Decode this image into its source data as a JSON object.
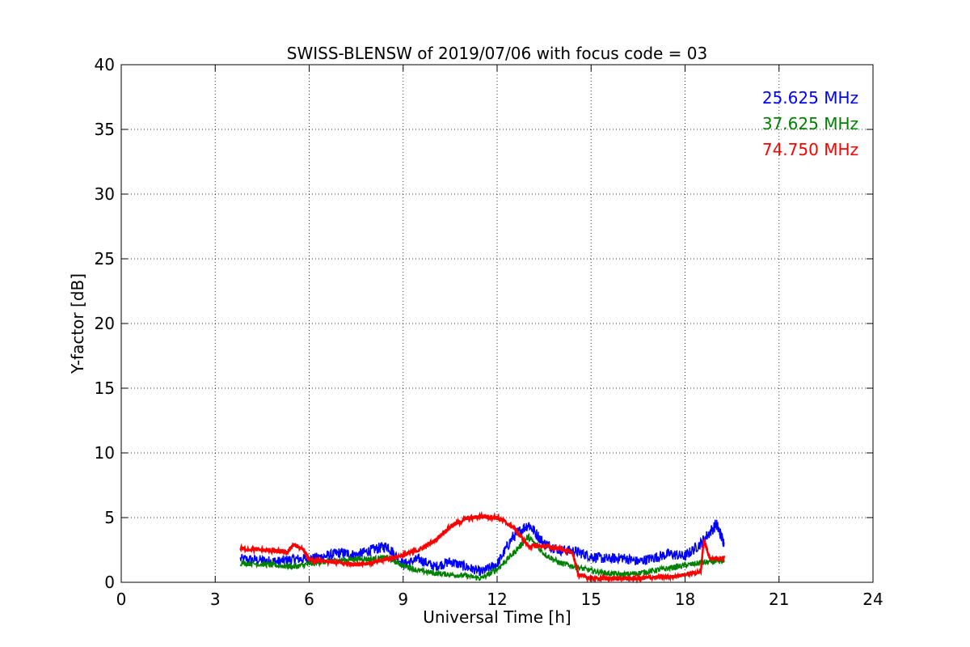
{
  "chart_data": {
    "type": "line",
    "title": "SWISS-BLENSW of 2019/07/06 with focus code = 03",
    "xlabel": "Universal Time [h]",
    "ylabel": "Y-factor [dB]",
    "xlim": [
      0,
      24
    ],
    "ylim": [
      0,
      40
    ],
    "xticks": [
      0,
      3,
      6,
      9,
      12,
      15,
      18,
      21,
      24
    ],
    "yticks": [
      0,
      5,
      10,
      15,
      20,
      25,
      30,
      35,
      40
    ],
    "xtick_labels": [
      "0",
      "3",
      "6",
      "9",
      "12",
      "15",
      "18",
      "21",
      "24"
    ],
    "ytick_labels": [
      "0",
      "5",
      "10",
      "15",
      "20",
      "25",
      "30",
      "35",
      "40"
    ],
    "grid": true,
    "legend_position": "top-right",
    "series": [
      {
        "name": "25.625 MHz",
        "color": "#0000ff",
        "x": [
          3.8,
          4.5,
          5.0,
          5.5,
          6.0,
          6.5,
          7.0,
          7.5,
          8.0,
          8.5,
          9.0,
          9.5,
          10.0,
          10.5,
          11.0,
          11.5,
          12.0,
          12.5,
          13.0,
          13.5,
          14.0,
          14.5,
          15.0,
          15.5,
          16.0,
          16.5,
          17.0,
          17.5,
          18.0,
          18.5,
          19.0,
          19.25
        ],
        "y": [
          1.8,
          1.7,
          1.6,
          1.8,
          1.8,
          2.0,
          2.3,
          2.1,
          2.5,
          2.8,
          1.4,
          1.8,
          1.2,
          1.6,
          1.2,
          0.8,
          1.4,
          3.5,
          4.5,
          3.0,
          2.5,
          2.4,
          2.0,
          1.8,
          1.9,
          1.6,
          1.9,
          2.2,
          2.0,
          3.0,
          4.5,
          3.0
        ]
      },
      {
        "name": "37.625 MHz",
        "color": "#008000",
        "x": [
          3.8,
          4.5,
          5.0,
          5.5,
          6.0,
          6.5,
          7.0,
          7.5,
          8.0,
          8.5,
          9.0,
          9.5,
          10.0,
          10.5,
          11.0,
          11.5,
          12.0,
          12.5,
          13.0,
          13.5,
          14.0,
          14.5,
          15.0,
          15.5,
          16.0,
          16.5,
          17.0,
          17.5,
          18.0,
          18.5,
          19.0,
          19.25
        ],
        "y": [
          1.5,
          1.4,
          1.3,
          1.2,
          1.4,
          1.6,
          1.7,
          1.8,
          1.8,
          1.9,
          1.3,
          0.9,
          0.7,
          0.6,
          0.5,
          0.3,
          1.0,
          2.2,
          3.5,
          2.2,
          1.5,
          1.2,
          0.9,
          0.7,
          0.6,
          0.7,
          0.9,
          1.1,
          1.3,
          1.5,
          1.6,
          1.7
        ]
      },
      {
        "name": "74.750 MHz",
        "color": "#ff0000",
        "x": [
          3.8,
          4.5,
          5.0,
          5.3,
          5.5,
          5.8,
          6.0,
          6.5,
          7.0,
          7.5,
          8.0,
          8.5,
          9.0,
          9.5,
          10.0,
          10.5,
          11.0,
          11.5,
          12.0,
          12.5,
          13.0,
          13.5,
          14.0,
          14.4,
          14.6,
          15.0,
          15.5,
          16.0,
          16.5,
          17.0,
          17.5,
          18.0,
          18.5,
          18.6,
          18.8,
          19.25
        ],
        "y": [
          2.6,
          2.5,
          2.4,
          2.3,
          2.9,
          2.6,
          1.7,
          1.6,
          1.5,
          1.4,
          1.5,
          1.8,
          2.1,
          2.5,
          3.2,
          4.3,
          4.9,
          5.1,
          5.0,
          4.3,
          2.8,
          2.8,
          2.6,
          2.3,
          0.6,
          0.3,
          0.3,
          0.3,
          0.3,
          0.4,
          0.4,
          0.6,
          0.8,
          3.3,
          1.8,
          1.9
        ]
      }
    ]
  }
}
